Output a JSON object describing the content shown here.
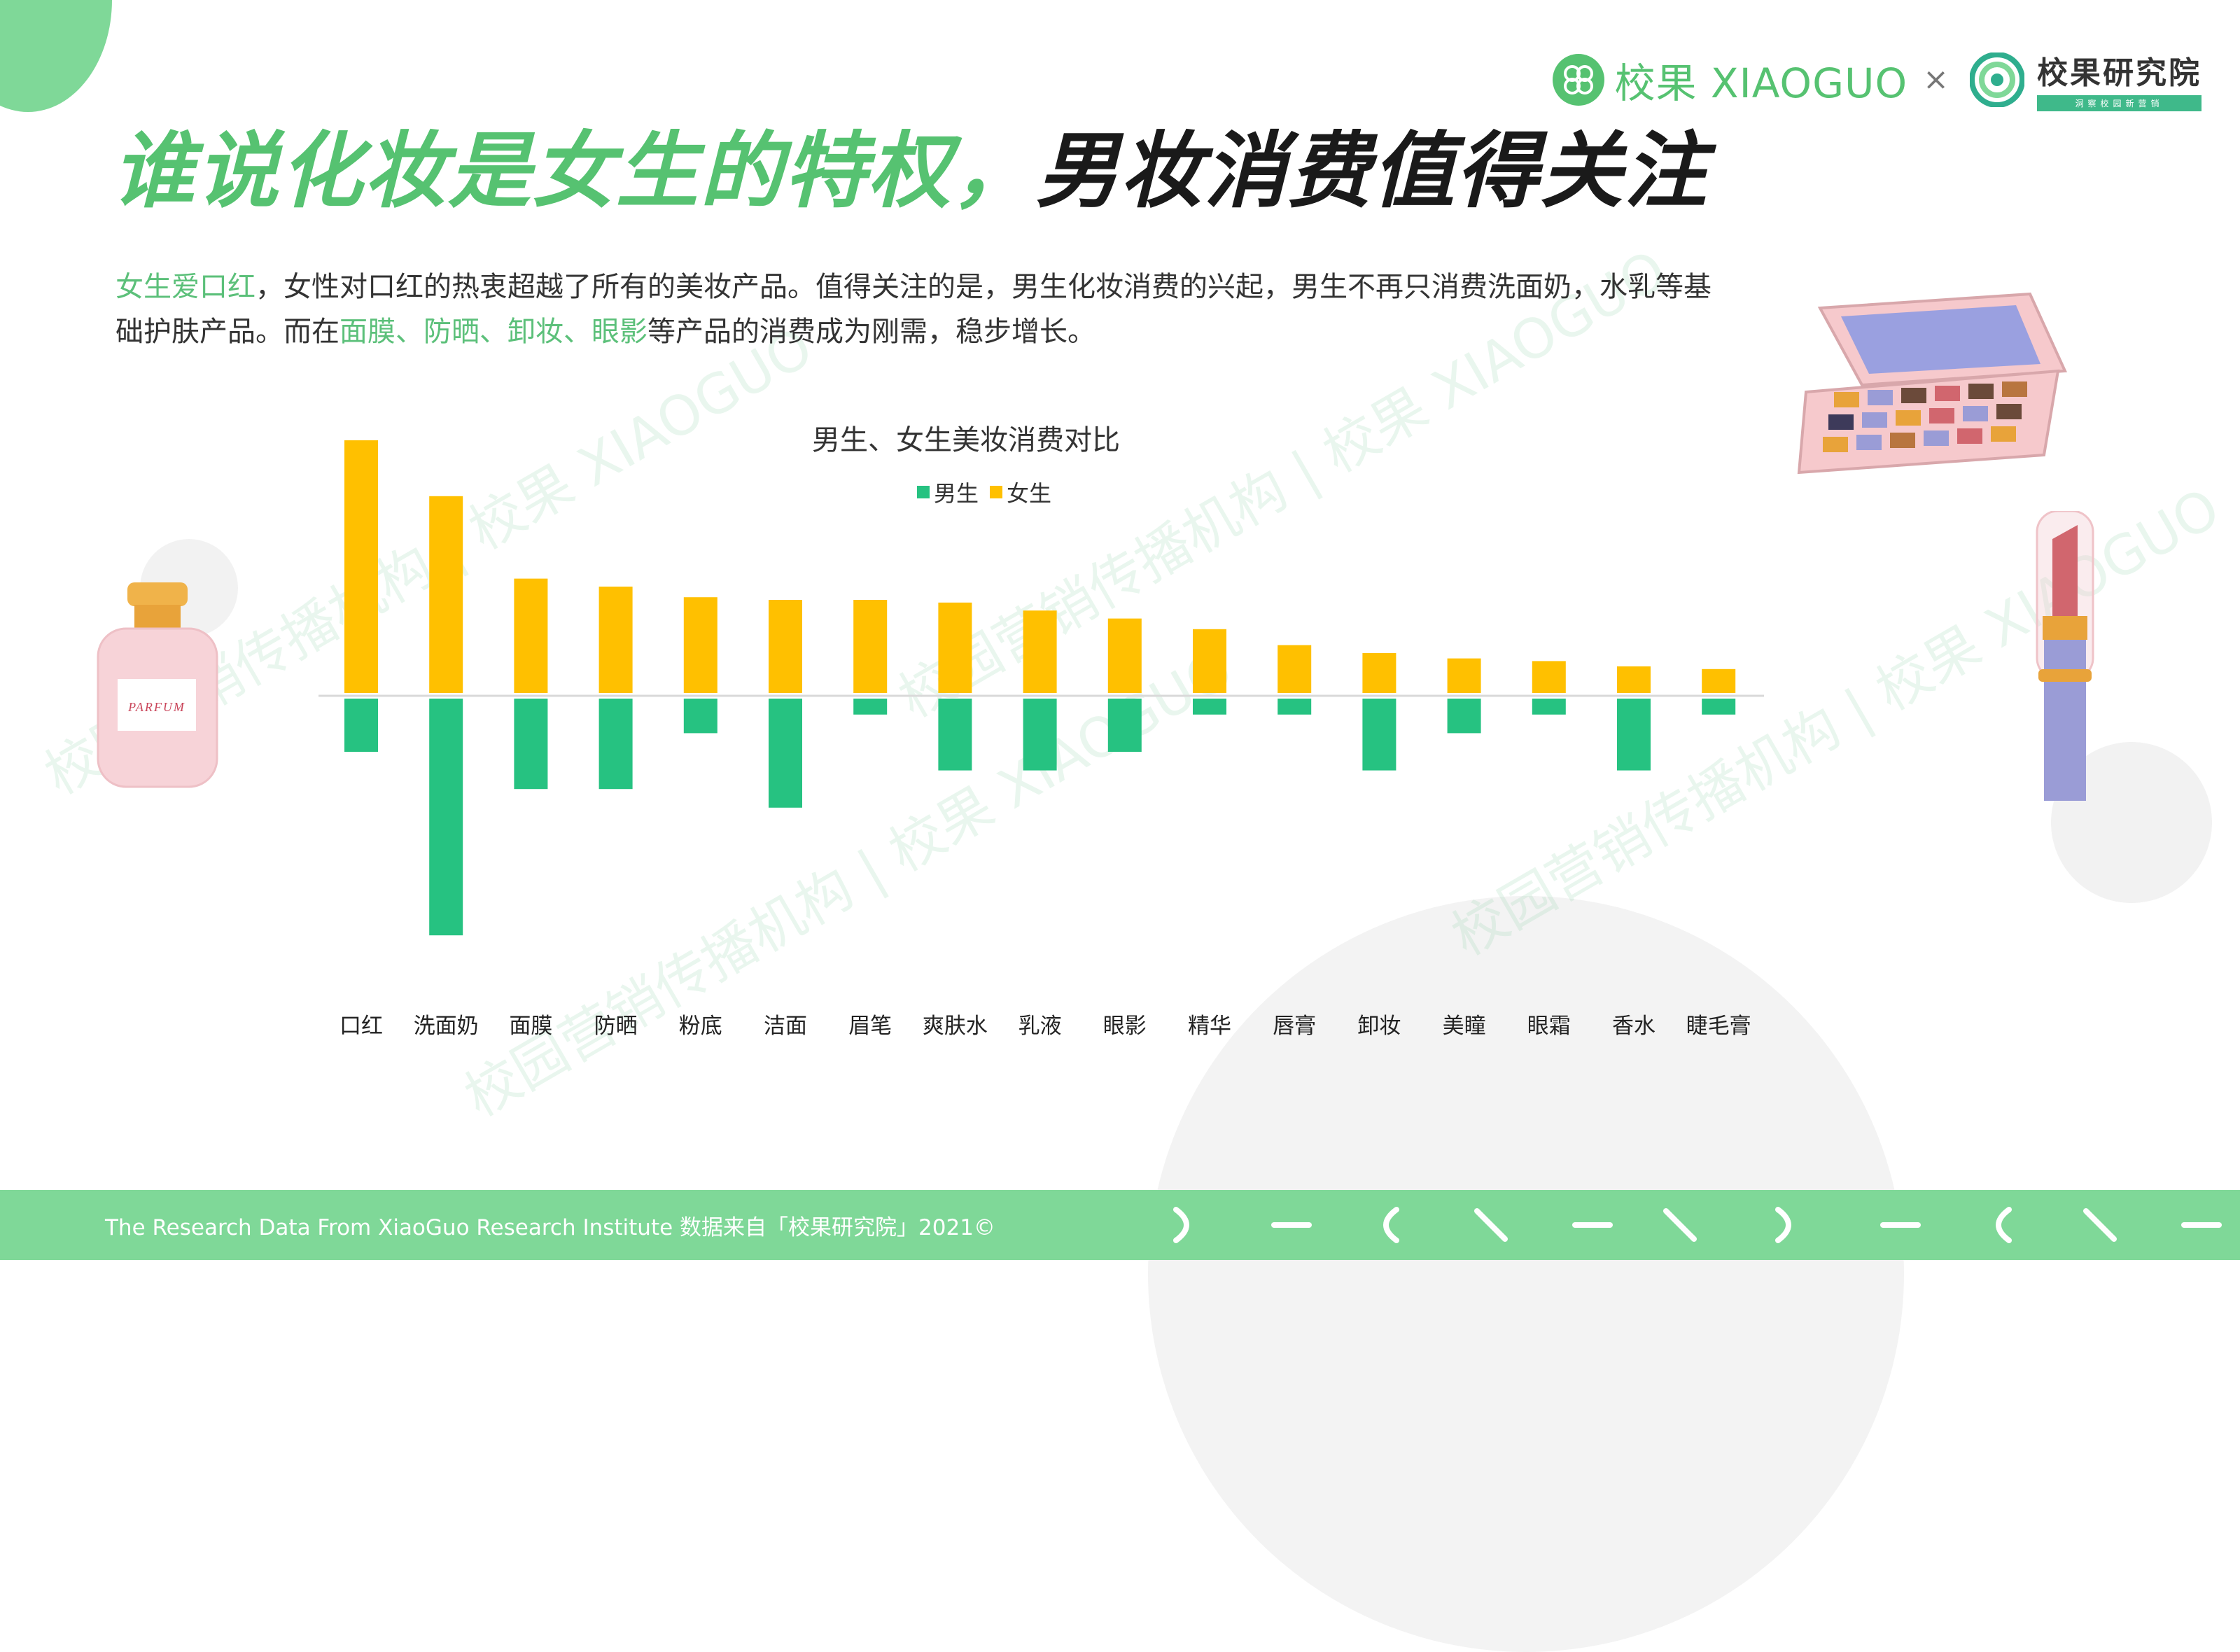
{
  "header": {
    "title_green": "谁说化妆是女生的特权，",
    "title_dark": "男妆消费值得关注"
  },
  "logos": {
    "brand": "校果 XIAOGUO",
    "times": "×",
    "institute": "校果研究院",
    "institute_tag": "洞察校园新营销"
  },
  "intro": {
    "part1_highlight": "女生爱口红",
    "part2": "，女性对口红的热衷超越了所有的美妆产品。值得关注的是，男生化妆消费的兴起，男生不再只消费洗面奶，水乳等基础护肤产品。而在",
    "part3_highlight": "面膜、防晒、卸妆、眼影",
    "part4": "等产品的消费成为刚需，稳步增长。"
  },
  "watermarks": [
    "校园营销传播机构  |  校果 XIAOGUO",
    "校园营销传播机构  |  校果 XIAOGUO",
    "校园营销传播机构  |  校果 XIAOGUO",
    "校园营销传播机构  |  校果 XIAOGUO"
  ],
  "decor_labels": {
    "perfume": "PARFUM"
  },
  "chart_data": {
    "type": "bar",
    "title": "男生、女生美妆消费对比",
    "legend": [
      "男生",
      "女生"
    ],
    "legend_position": "top-center",
    "categories": [
      "口红",
      "洗面奶",
      "面膜",
      "防晒",
      "粉底",
      "洁面",
      "眉笔",
      "爽肤水",
      "乳液",
      "眼影",
      "精华",
      "唇膏",
      "卸妆",
      "美瞳",
      "眼霜",
      "香水",
      "睫毛膏"
    ],
    "series": [
      {
        "name": "男生",
        "color": "#26c281",
        "direction": "down",
        "values": [
          20,
          89,
          34,
          34,
          13,
          41,
          6,
          27,
          27,
          20,
          6,
          6,
          27,
          13,
          6,
          27,
          6
        ]
      },
      {
        "name": "女生",
        "color": "#ffc000",
        "direction": "up",
        "values": [
          95,
          74,
          43,
          40,
          36,
          35,
          35,
          34,
          31,
          28,
          24,
          18,
          15,
          13,
          12,
          10,
          9
        ]
      }
    ],
    "grid": false,
    "ylim": [
      -100,
      100
    ]
  },
  "footer": {
    "text": "The Research Data  From XiaoGuo Research Institute 数据来自「校果研究院」2021©"
  }
}
